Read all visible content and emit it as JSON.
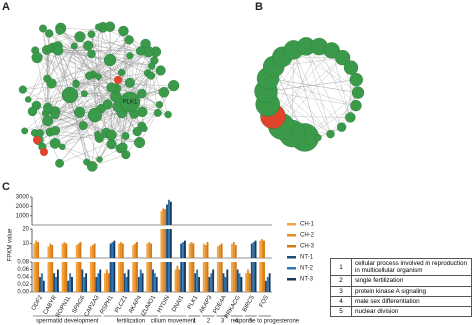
{
  "panels": {
    "a": {
      "label": "A",
      "hub": "PLK1"
    },
    "b": {
      "label": "B"
    },
    "c": {
      "label": "C"
    }
  },
  "chart_data": {
    "type": "bar",
    "y_label": "FPKM value",
    "categories": [
      "ODF2",
      "CABYR",
      "ROPN1L",
      "SPAG6",
      "CAPZA3",
      "RSPH1",
      "PLCZ1",
      "AKAP4",
      "IZUMO1",
      "HYDIN",
      "DNAI1",
      "PLK1",
      "AKAP3",
      "PDE4A",
      "PRKACG",
      "BIRC5",
      "FOS"
    ],
    "groups": [
      {
        "label": "spermatid development",
        "start": 0,
        "end": 4
      },
      {
        "label": "fertilization",
        "start": 5,
        "end": 8
      },
      {
        "label": "cilium movement",
        "start": 9,
        "end": 10
      },
      {
        "label": "1",
        "start": 11,
        "end": 11
      },
      {
        "label": "2",
        "start": 12,
        "end": 12
      },
      {
        "label": "3",
        "start": 13,
        "end": 13
      },
      {
        "label": "4",
        "start": 14,
        "end": 14
      },
      {
        "label": "5",
        "start": 15,
        "end": 15
      },
      {
        "label": "response to progesterone",
        "start": 16,
        "end": 16
      }
    ],
    "segments": [
      {
        "ylim": [
          0,
          0.08
        ],
        "yticks": [
          {
            "value": 0,
            "label": "0.00"
          },
          0.02,
          0.04,
          0.06,
          0.08
        ]
      },
      {
        "ylim": [
          0.08,
          20
        ],
        "yticks": [
          10,
          20
        ]
      },
      {
        "ylim": [
          20,
          3000
        ],
        "yticks": [
          1000,
          2000,
          3000
        ]
      }
    ],
    "series": [
      {
        "name": "CH-1",
        "color": "#f2a541",
        "values": [
          10,
          8,
          10,
          9,
          8,
          0.05,
          10,
          9,
          10,
          1500,
          0.06,
          10,
          10,
          8,
          10,
          0.05,
          12
        ]
      },
      {
        "name": "CH-2",
        "color": "#e88f24",
        "values": [
          12,
          10,
          11,
          10,
          9,
          0.06,
          11,
          10,
          11,
          1800,
          0.07,
          11,
          9,
          9,
          11,
          0.06,
          13
        ]
      },
      {
        "name": "CH-3",
        "color": "#d4791a",
        "values": [
          11,
          9,
          10,
          11,
          10,
          0.05,
          10,
          11,
          10,
          1700,
          0.06,
          10,
          11,
          10,
          9,
          0.05,
          12
        ]
      },
      {
        "name": "NT-1",
        "color": "#1f4e79",
        "values": [
          0.04,
          0.05,
          0.03,
          0.06,
          0.04,
          10,
          0.05,
          0.04,
          0.06,
          2200,
          10,
          0.05,
          0.04,
          0.05,
          0.06,
          10,
          0.03
        ]
      },
      {
        "name": "NT-2",
        "color": "#2e75b6",
        "values": [
          0.05,
          0.04,
          0.05,
          0.04,
          0.05,
          11,
          0.04,
          0.06,
          0.05,
          2700,
          11,
          0.06,
          0.05,
          0.04,
          0.05,
          11,
          0.04
        ]
      },
      {
        "name": "NT-3",
        "color": "#16385e",
        "values": [
          0.03,
          0.06,
          0.04,
          0.05,
          0.06,
          12,
          0.06,
          0.05,
          0.04,
          2500,
          12,
          0.04,
          0.06,
          0.06,
          0.04,
          12,
          0.05
        ]
      }
    ]
  },
  "table": {
    "rows": [
      [
        "1",
        "cellular process involved in reproduction in multicellular organism"
      ],
      [
        "2",
        "single fertilization"
      ],
      [
        "3",
        "protein kinase A signaling"
      ],
      [
        "4",
        "male sex differentiation"
      ],
      [
        "5",
        "nuclear division"
      ]
    ]
  }
}
